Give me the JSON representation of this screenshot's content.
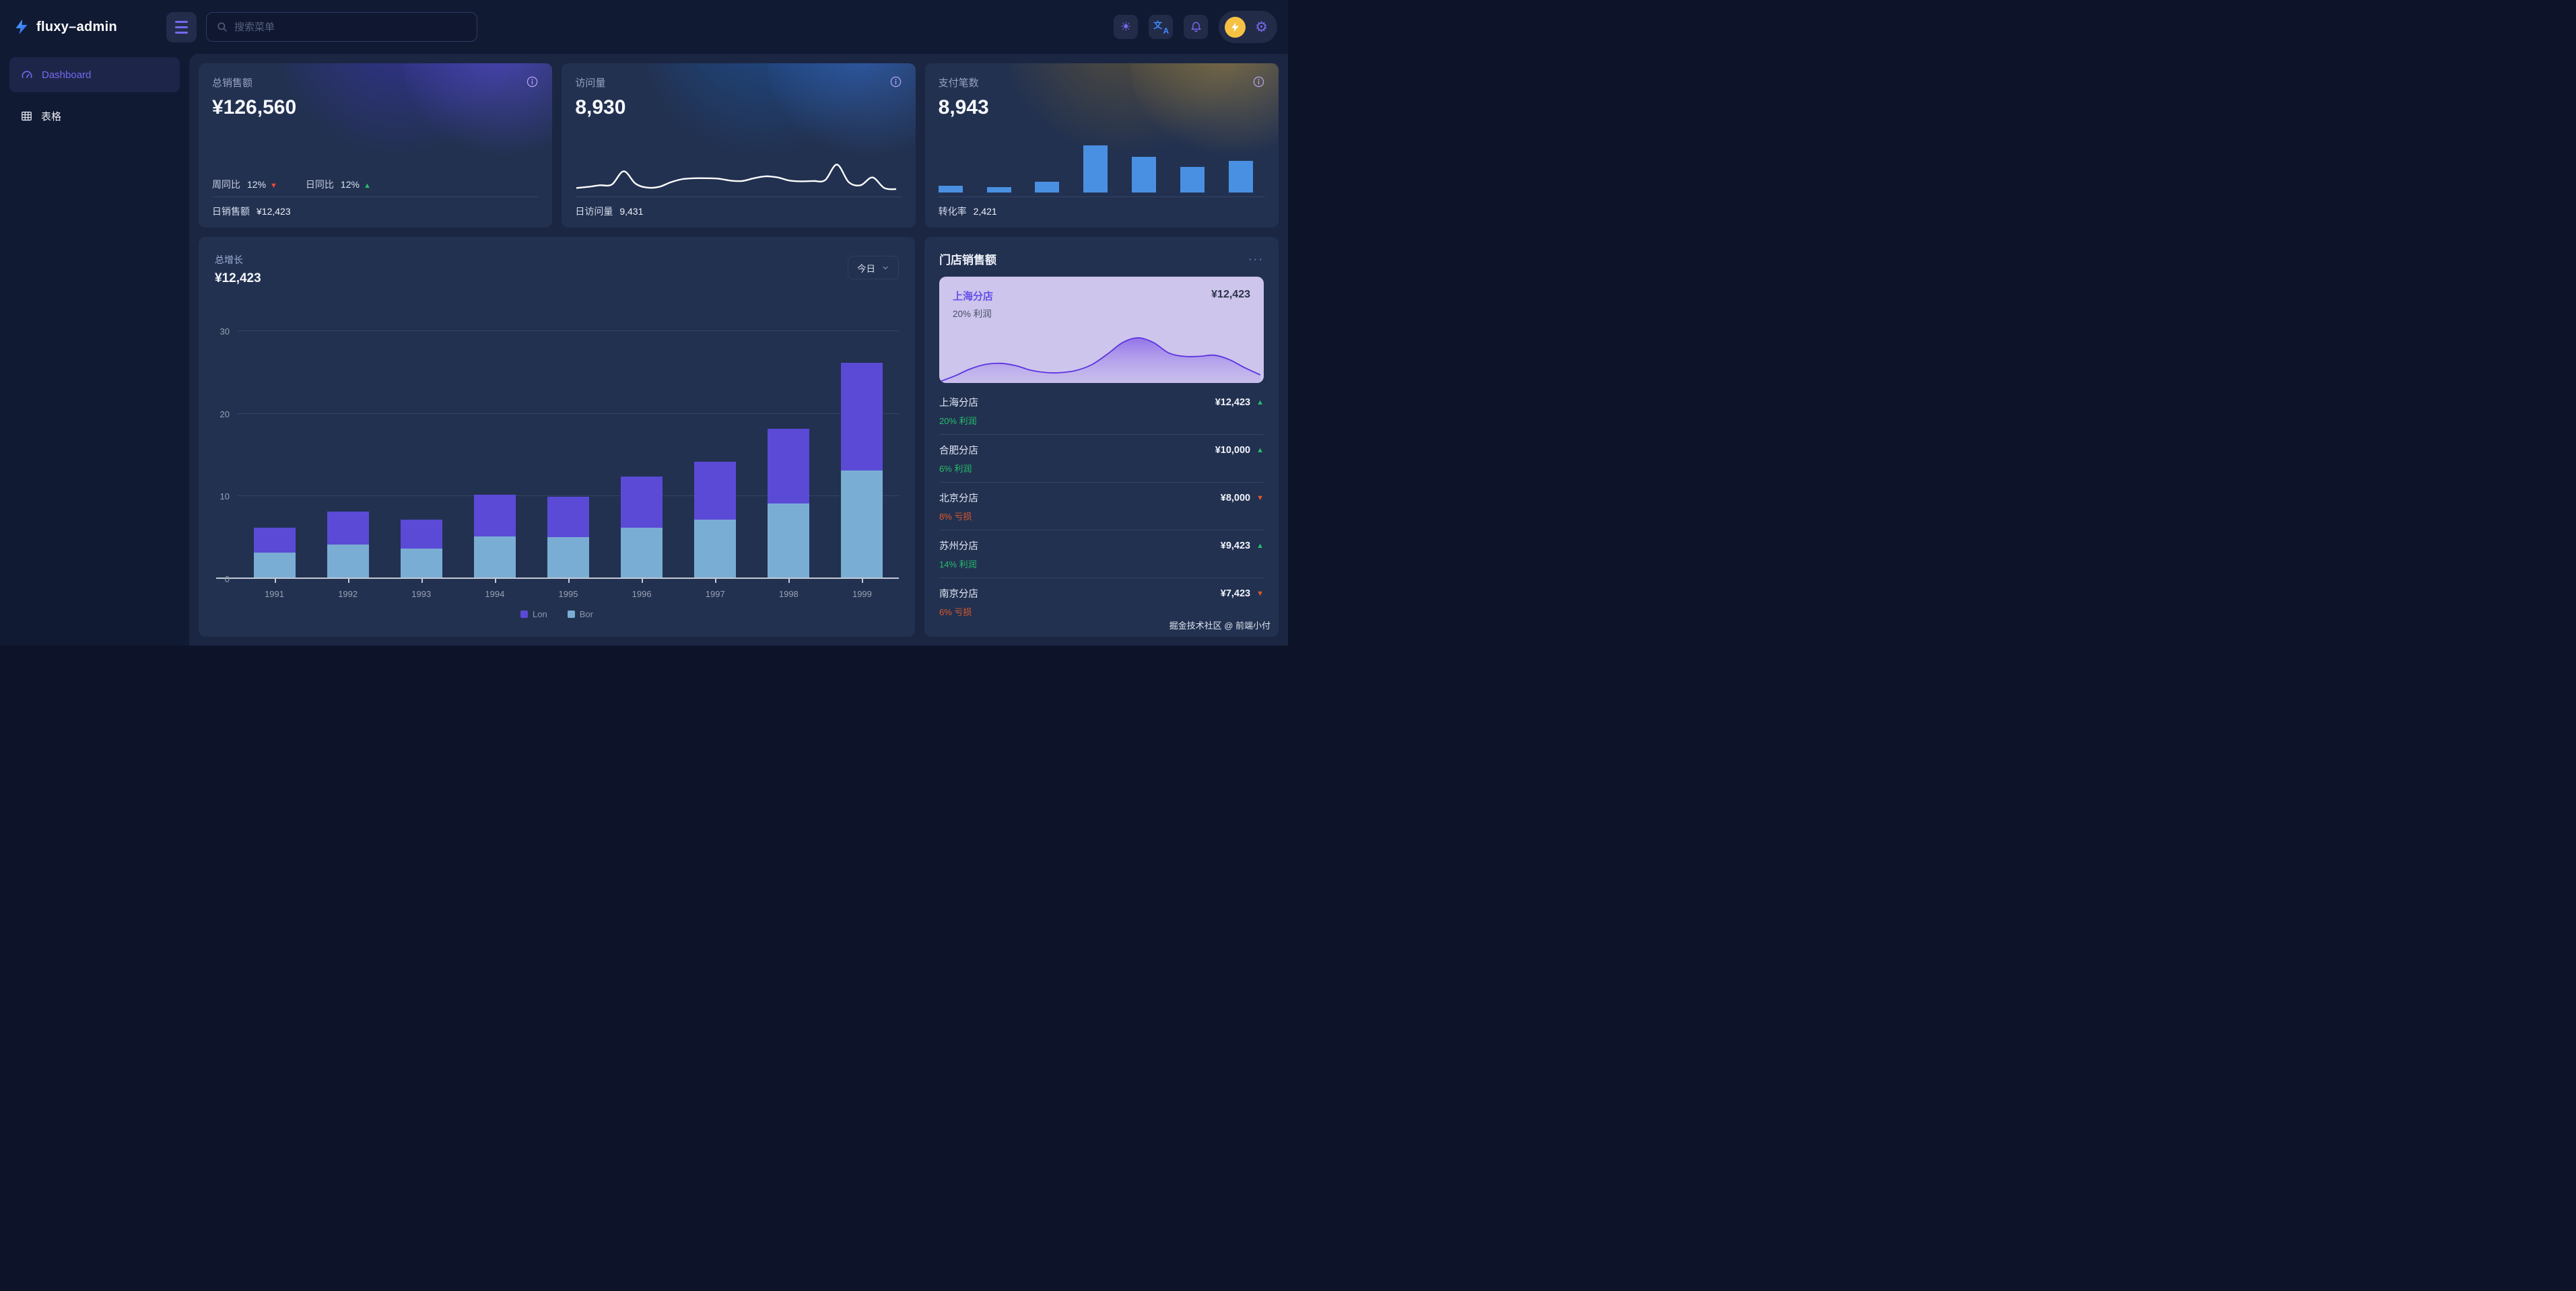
{
  "brand": {
    "title": "fluxy–admin"
  },
  "topbar": {
    "search_placeholder": "搜索菜单"
  },
  "sidebar": {
    "items": [
      {
        "label": "Dashboard",
        "active": true
      },
      {
        "label": "表格",
        "active": false
      }
    ]
  },
  "glyphs": {
    "up": "▲",
    "down": "▼",
    "sun": "☀",
    "gear": "⚙",
    "translate_zh": "文",
    "translate_en": "A",
    "ellipsis": "···"
  },
  "stat_cards": [
    {
      "title": "总销售额",
      "value": "¥126,560",
      "metrics": [
        {
          "label": "周同比",
          "value": "12%",
          "trend": "down"
        },
        {
          "label": "日同比",
          "value": "12%",
          "trend": "up"
        }
      ],
      "footer_label": "日销售额",
      "footer_value": "¥12,423"
    },
    {
      "title": "访问量",
      "value": "8,930",
      "footer_label": "日访问量",
      "footer_value": "9,431"
    },
    {
      "title": "支付笔数",
      "value": "8,943",
      "footer_label": "转化率",
      "footer_value": "2,421"
    }
  ],
  "growth": {
    "title": "总增长",
    "amount": "¥12,423",
    "range_label": "今日"
  },
  "store": {
    "title": "门店销售额",
    "menu": "···",
    "highlight": {
      "name": "上海分店",
      "value": "¥12,423",
      "sub": "20% 利润"
    },
    "items": [
      {
        "name": "上海分店",
        "value": "¥12,423",
        "trend": "up",
        "sub": "20% 利润"
      },
      {
        "name": "合肥分店",
        "value": "¥10,000",
        "trend": "up",
        "sub": "6% 利润"
      },
      {
        "name": "北京分店",
        "value": "¥8,000",
        "trend": "down",
        "sub": "8% 亏损"
      },
      {
        "name": "苏州分店",
        "value": "¥9,423",
        "trend": "up",
        "sub": "14% 利润"
      },
      {
        "name": "南京分店",
        "value": "¥7,423",
        "trend": "down",
        "sub": "6% 亏损"
      }
    ]
  },
  "footer": {
    "credit": "掘金技术社区 @ 前端小付"
  },
  "palette": {
    "accent_purple": "#7668f0",
    "bar_purple": "#5b4ad6",
    "bar_blue": "#7aadd4",
    "mini_bar_blue": "#4a90e2",
    "up_green": "#26bf6b",
    "down_red": "#f0483c",
    "loss_orange": "#e2582a",
    "brand_blue": "#3b82f6",
    "avatar_yellow": "#f6c244",
    "highlight_lavender": "#cdc5ec",
    "card_bg": "#223150",
    "page_bg": "#111a33"
  },
  "chart_data": [
    {
      "id": "growth",
      "type": "bar",
      "stacked": true,
      "title": "总增长",
      "categories": [
        "1991",
        "1992",
        "1993",
        "1994",
        "1995",
        "1996",
        "1997",
        "1998",
        "1999"
      ],
      "series": [
        {
          "name": "Lon",
          "color": "#5b4ad6",
          "values": [
            3,
            4,
            3.5,
            5,
            4.9,
            6.2,
            7,
            9,
            13
          ]
        },
        {
          "name": "Bor",
          "color": "#7aadd4",
          "values": [
            3,
            4,
            3.5,
            5,
            4.9,
            6,
            7,
            9,
            13
          ]
        }
      ],
      "ylim": [
        0,
        30
      ],
      "yticks": [
        0,
        10,
        20,
        30
      ],
      "grid": true,
      "legend_position": "bottom"
    },
    {
      "id": "visits",
      "type": "line",
      "color": "#ffffff",
      "ylim": [
        0,
        100
      ],
      "values": [
        15,
        18,
        22,
        24,
        58,
        26,
        16,
        18,
        30,
        38,
        40,
        40,
        39,
        34,
        33,
        40,
        45,
        42,
        34,
        32,
        33,
        35,
        75,
        30,
        22,
        42,
        15,
        12
      ]
    },
    {
      "id": "payments",
      "type": "bar",
      "color": "#4a90e2",
      "ylim": [
        0,
        100
      ],
      "values": [
        13,
        11,
        21,
        95,
        72,
        51,
        64
      ]
    },
    {
      "id": "store_trend",
      "type": "area",
      "stroke": "#5c33e0",
      "fill": "#8f6fe8",
      "ylim": [
        0,
        100
      ],
      "values": [
        2,
        12,
        24,
        32,
        34,
        30,
        22,
        18,
        18,
        22,
        32,
        50,
        70,
        78,
        70,
        52,
        46,
        46,
        48,
        40,
        26,
        14
      ]
    }
  ]
}
